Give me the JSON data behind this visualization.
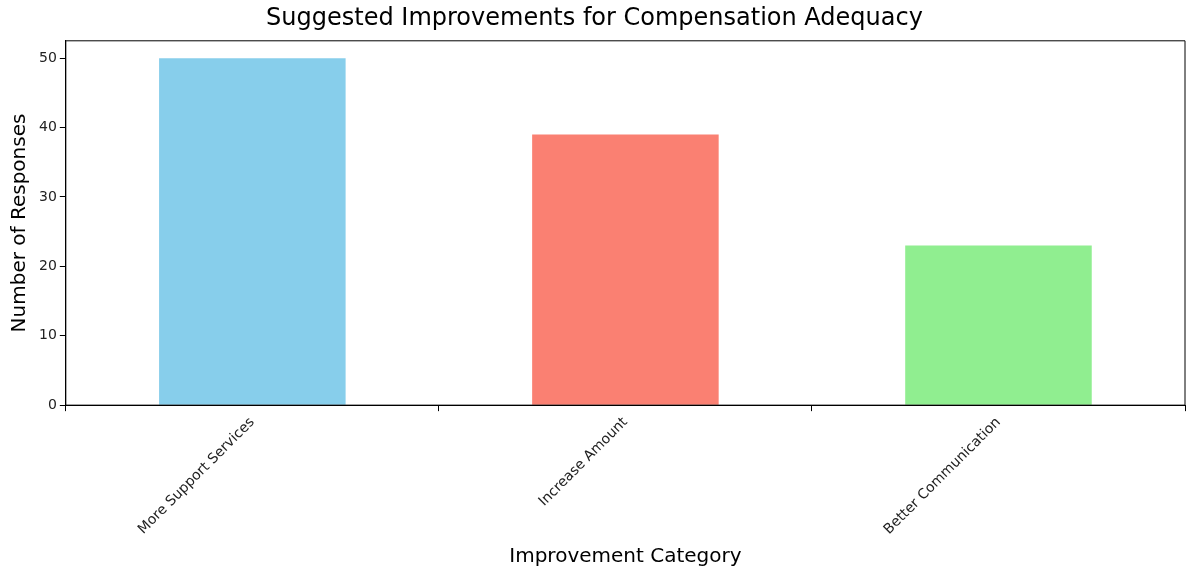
{
  "chart_data": {
    "type": "bar",
    "title": "Suggested Improvements for Compensation Adequacy",
    "xlabel": "Improvement Category",
    "ylabel": "Number of Responses",
    "categories": [
      "More Support Services",
      "Increase Amount",
      "Better Communication"
    ],
    "values": [
      50,
      39,
      23
    ],
    "colors": [
      "#87ceeb",
      "#fa8072",
      "#90ee90"
    ],
    "ylim": [
      0,
      52.5
    ],
    "yticks": [
      0,
      10,
      20,
      30,
      40,
      50
    ],
    "grid": false,
    "legend": false
  }
}
